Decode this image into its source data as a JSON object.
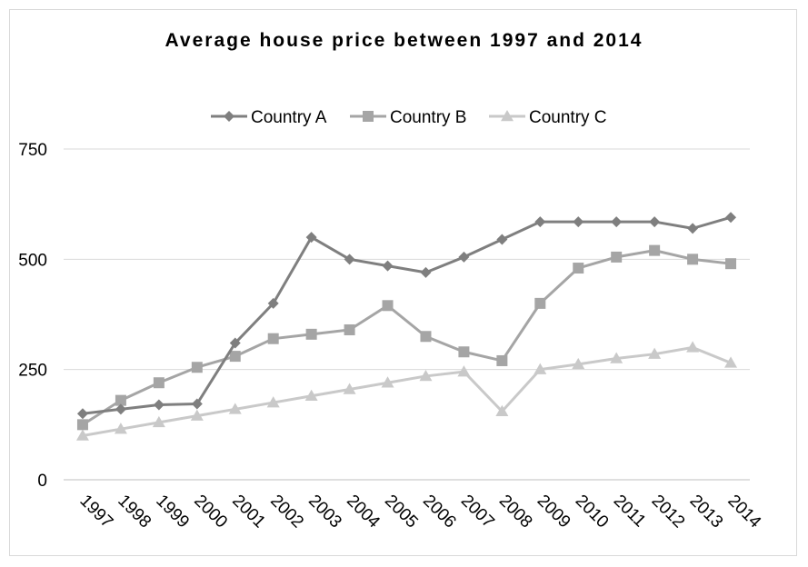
{
  "chart_data": {
    "type": "line",
    "title": "Average house price between 1997 and 2014",
    "xlabel": "",
    "ylabel": "",
    "categories": [
      "1997",
      "1998",
      "1999",
      "2000",
      "2001",
      "2002",
      "2003",
      "2004",
      "2005",
      "2006",
      "2007",
      "2008",
      "2009",
      "2010",
      "2011",
      "2012",
      "2013",
      "2014"
    ],
    "ylim": [
      0,
      750
    ],
    "yticks": [
      "0",
      "250",
      "500",
      "750"
    ],
    "legend_position": "top",
    "grid": true,
    "series": [
      {
        "name": "Country A",
        "marker": "diamond",
        "color": "#7f7f7f",
        "values": [
          150,
          160,
          170,
          172,
          310,
          400,
          550,
          500,
          485,
          470,
          505,
          545,
          585,
          585,
          585,
          585,
          570,
          595
        ]
      },
      {
        "name": "Country B",
        "marker": "square",
        "color": "#a5a5a5",
        "values": [
          125,
          180,
          220,
          255,
          280,
          320,
          330,
          340,
          395,
          325,
          290,
          270,
          400,
          480,
          505,
          520,
          500,
          490
        ]
      },
      {
        "name": "Country C",
        "marker": "triangle",
        "color": "#c9c9c9",
        "values": [
          100,
          115,
          130,
          145,
          160,
          175,
          190,
          205,
          220,
          235,
          245,
          155,
          250,
          262,
          275,
          285,
          300,
          265
        ]
      }
    ]
  }
}
